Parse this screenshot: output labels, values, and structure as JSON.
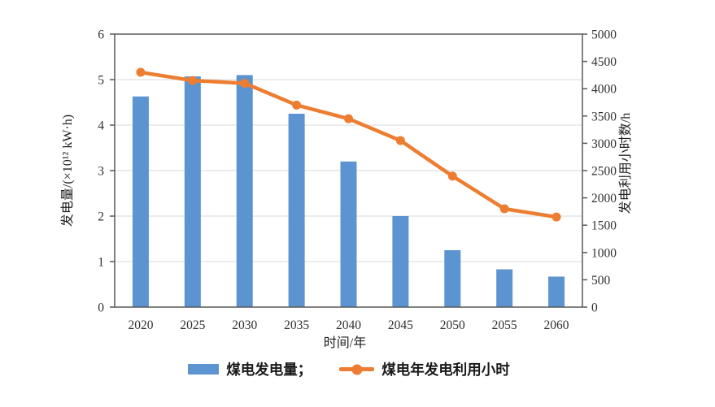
{
  "chart_data": {
    "type": "combo-bar-line",
    "categories": [
      "2020",
      "2025",
      "2030",
      "2035",
      "2040",
      "2045",
      "2050",
      "2055",
      "2060"
    ],
    "series": [
      {
        "name": "煤电发电量",
        "plot": "bar",
        "axis": "left",
        "color": "#5B94D0",
        "values": [
          4.63,
          5.07,
          5.1,
          4.25,
          3.2,
          2.0,
          1.25,
          0.83,
          0.67
        ]
      },
      {
        "name": "煤电年发电利用小时",
        "plot": "line",
        "axis": "right",
        "color": "#ED7D31",
        "values": [
          4300,
          4150,
          4100,
          3700,
          3450,
          3050,
          2400,
          1800,
          1650
        ]
      }
    ],
    "xlabel": "时间/年",
    "ylabel_left": "发电量/(×10¹² kW·h)",
    "ylabel_right": "发电利用小时数/h",
    "ylim_left": [
      0,
      6
    ],
    "ytick_step_left": 1,
    "ylim_right": [
      0,
      5000
    ],
    "ytick_step_right": 500,
    "grid": "horizontal-on-left-axis-steps",
    "legend_position": "bottom"
  },
  "legend": {
    "items": [
      {
        "label": "煤电发电量；",
        "swatch": "bar"
      },
      {
        "label": "煤电年发电利用小时",
        "swatch": "line"
      }
    ]
  },
  "colors": {
    "bar": "#5B94D0",
    "line": "#ED7D31",
    "axis": "#595959",
    "grid": "#D9D9D9",
    "text": "#303030",
    "background": "#FFFFFF"
  }
}
